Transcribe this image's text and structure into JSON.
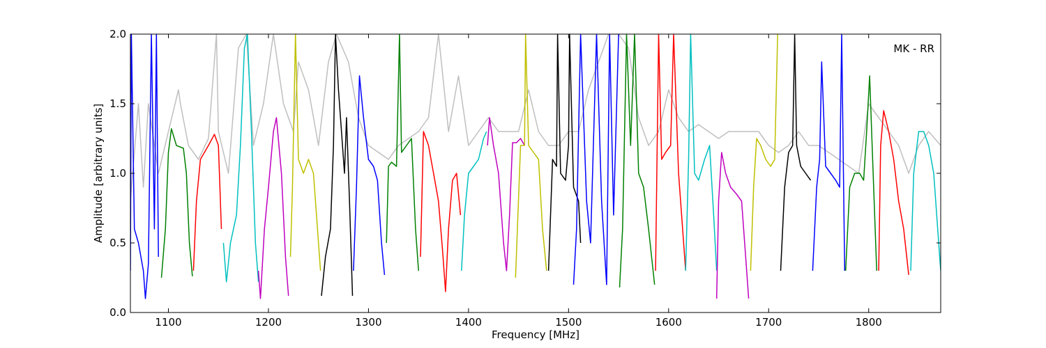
{
  "chart_data": {
    "type": "line",
    "annotation": "MK - RR",
    "xlabel": "Frequency [MHz]",
    "ylabel": "Amplitude [arbitrary units]",
    "xlim": [
      1062,
      1872
    ],
    "ylim": [
      0,
      2
    ],
    "xticks": [
      1100,
      1200,
      1300,
      1400,
      1500,
      1600,
      1700,
      1800
    ],
    "yticks": [
      {
        "value": 0,
        "label": "0.0"
      },
      {
        "value": 0.5,
        "label": "0.5"
      },
      {
        "value": 1,
        "label": "1.0"
      },
      {
        "value": 1.5,
        "label": "1.5"
      },
      {
        "value": 2,
        "label": "2.0"
      }
    ],
    "series": [
      {
        "color": "#bfbfbf",
        "x": [
          1062,
          1070,
          1075,
          1080,
          1090,
          1100,
          1110,
          1112,
          1120,
          1130,
          1140,
          1148,
          1150,
          1160,
          1170,
          1178,
          1185,
          1195,
          1205,
          1215,
          1225,
          1230,
          1240,
          1250,
          1260,
          1268,
          1280,
          1290,
          1300,
          1310,
          1320,
          1330,
          1340,
          1350,
          1360,
          1370,
          1380,
          1390,
          1400,
          1410,
          1420,
          1430,
          1440,
          1450,
          1460,
          1470,
          1480,
          1490,
          1500,
          1510,
          1520,
          1530,
          1540,
          1550,
          1560,
          1570,
          1580,
          1590,
          1600,
          1610,
          1620,
          1630,
          1640,
          1650,
          1660,
          1670,
          1680,
          1690,
          1700,
          1710,
          1720,
          1730,
          1740,
          1750,
          1760,
          1770,
          1780,
          1790,
          1800,
          1810,
          1820,
          1830,
          1840,
          1850,
          1860,
          1872
        ],
        "values": [
          0.8,
          1.5,
          0.9,
          1.5,
          1.0,
          1.3,
          1.6,
          1.5,
          1.2,
          1.1,
          1.25,
          2.0,
          1.3,
          1.0,
          1.9,
          2.0,
          1.2,
          1.5,
          2.0,
          1.5,
          1.3,
          1.8,
          1.6,
          1.2,
          1.8,
          2.0,
          1.8,
          1.4,
          1.2,
          1.15,
          1.1,
          1.2,
          1.25,
          1.3,
          1.4,
          2.0,
          1.3,
          1.7,
          1.2,
          1.3,
          1.4,
          1.3,
          1.3,
          1.3,
          1.6,
          1.3,
          1.2,
          1.2,
          1.3,
          1.3,
          1.6,
          1.8,
          2.0,
          2.0,
          1.9,
          1.4,
          1.2,
          1.3,
          1.6,
          1.4,
          1.3,
          1.35,
          1.3,
          1.25,
          1.3,
          1.3,
          1.3,
          1.3,
          1.2,
          1.15,
          1.2,
          1.3,
          1.2,
          1.2,
          1.15,
          1.1,
          1.05,
          1.0,
          1.5,
          1.4,
          1.3,
          1.2,
          1.0,
          1.2,
          1.3,
          1.2
        ]
      },
      {
        "color": "#0000ff",
        "x": [
          1062,
          1063,
          1066,
          1070,
          1075,
          1077,
          1080,
          1083,
          1086,
          1088,
          1090
        ],
        "values": [
          0.3,
          2.0,
          0.6,
          0.5,
          0.3,
          0.1,
          0.35,
          2.0,
          0.6,
          2.0,
          0.4
        ]
      },
      {
        "color": "#008000",
        "x": [
          1093,
          1097,
          1100,
          1103,
          1108,
          1115,
          1118,
          1121,
          1124
        ],
        "values": [
          0.25,
          0.6,
          1.15,
          1.32,
          1.2,
          1.18,
          1.0,
          0.5,
          0.26
        ]
      },
      {
        "color": "#ff0000",
        "x": [
          1125,
          1128,
          1132,
          1140,
          1146,
          1150,
          1153
        ],
        "values": [
          0.3,
          0.8,
          1.1,
          1.2,
          1.28,
          1.2,
          0.6
        ]
      },
      {
        "color": "#00bfbf",
        "x": [
          1155,
          1158,
          1162,
          1168,
          1172,
          1176,
          1179,
          1183,
          1187,
          1190
        ],
        "values": [
          0.5,
          0.22,
          0.5,
          0.7,
          1.2,
          1.9,
          2.0,
          1.3,
          0.5,
          0.22
        ]
      },
      {
        "color": "#bf00bf",
        "x": [
          1190,
          1192,
          1196,
          1200,
          1205,
          1208,
          1213,
          1217,
          1220
        ],
        "values": [
          0.3,
          0.1,
          0.6,
          0.9,
          1.3,
          1.4,
          1.0,
          0.4,
          0.12
        ]
      },
      {
        "color": "#bfbf00",
        "x": [
          1222,
          1224,
          1227,
          1230,
          1235,
          1240,
          1245,
          1249,
          1252
        ],
        "values": [
          0.4,
          0.9,
          2.0,
          1.1,
          1.0,
          1.1,
          1.0,
          0.6,
          0.3
        ]
      },
      {
        "color": "#000000",
        "x": [
          1253,
          1257,
          1262,
          1265,
          1267,
          1270,
          1273,
          1276,
          1278,
          1281,
          1284
        ],
        "values": [
          0.12,
          0.4,
          0.6,
          1.2,
          2.0,
          1.6,
          1.3,
          1.0,
          1.4,
          0.8,
          0.12
        ]
      },
      {
        "color": "#0000ff",
        "x": [
          1285,
          1288,
          1291,
          1295,
          1300,
          1305,
          1309,
          1313,
          1316
        ],
        "values": [
          0.3,
          0.9,
          1.7,
          1.4,
          1.1,
          1.05,
          0.95,
          0.5,
          0.27
        ]
      },
      {
        "color": "#008000",
        "x": [
          1318,
          1320,
          1323,
          1328,
          1331,
          1333,
          1338,
          1343,
          1347,
          1350
        ],
        "values": [
          0.5,
          1.05,
          1.08,
          1.05,
          2.0,
          1.15,
          1.2,
          1.25,
          0.6,
          0.3
        ]
      },
      {
        "color": "#ff0000",
        "x": [
          1352,
          1355,
          1360,
          1365,
          1370,
          1374,
          1377,
          1380,
          1384,
          1388,
          1392
        ],
        "values": [
          0.4,
          1.3,
          1.2,
          1.0,
          0.8,
          0.45,
          0.15,
          0.6,
          0.95,
          1.0,
          0.7
        ]
      },
      {
        "color": "#00bfbf",
        "x": [
          1393,
          1396,
          1400,
          1405,
          1410,
          1415,
          1418
        ],
        "values": [
          0.3,
          0.7,
          1.0,
          1.05,
          1.1,
          1.25,
          1.3
        ]
      },
      {
        "color": "#bf00bf",
        "x": [
          1419,
          1421,
          1425,
          1430,
          1435,
          1438,
          1441,
          1444,
          1448,
          1452,
          1456
        ],
        "values": [
          1.2,
          1.4,
          1.2,
          1.0,
          0.5,
          0.3,
          0.7,
          1.22,
          1.22,
          1.25,
          1.2
        ]
      },
      {
        "color": "#bfbf00",
        "x": [
          1447,
          1452,
          1456,
          1457,
          1460,
          1465,
          1470,
          1474,
          1478
        ],
        "values": [
          0.25,
          1.2,
          1.2,
          2.0,
          1.2,
          1.15,
          1.1,
          0.6,
          0.3
        ]
      },
      {
        "color": "#000000",
        "x": [
          1480,
          1484,
          1488,
          1489,
          1492,
          1497,
          1500,
          1501,
          1505,
          1510,
          1512
        ],
        "values": [
          0.3,
          1.1,
          1.05,
          2.0,
          1.0,
          0.95,
          1.2,
          2.0,
          0.9,
          0.8,
          0.5
        ]
      },
      {
        "color": "#0000ff",
        "x": [
          1505,
          1508,
          1512,
          1518,
          1522,
          1528,
          1533,
          1538,
          1541,
          1545,
          1550
        ],
        "values": [
          0.2,
          0.6,
          2.0,
          0.8,
          0.5,
          2.0,
          0.8,
          0.2,
          2.0,
          0.7,
          2.0
        ]
      },
      {
        "color": "#008000",
        "x": [
          1551,
          1554,
          1558,
          1562,
          1566,
          1570,
          1575,
          1580,
          1586
        ],
        "values": [
          0.18,
          0.6,
          2.0,
          1.2,
          2.0,
          1.0,
          0.9,
          0.6,
          0.2
        ]
      },
      {
        "color": "#ff0000",
        "x": [
          1587,
          1590,
          1593,
          1597,
          1602,
          1605,
          1610,
          1614,
          1617
        ],
        "values": [
          0.3,
          2.0,
          1.1,
          1.15,
          1.2,
          2.0,
          1.0,
          0.6,
          0.3
        ]
      },
      {
        "color": "#00bfbf",
        "x": [
          1617,
          1620,
          1622,
          1626,
          1630,
          1636,
          1641,
          1645,
          1648
        ],
        "values": [
          0.3,
          1.1,
          2.0,
          1.0,
          0.95,
          1.1,
          1.2,
          0.7,
          0.3
        ]
      },
      {
        "color": "#bf00bf",
        "x": [
          1648,
          1650,
          1653,
          1657,
          1662,
          1668,
          1673,
          1677,
          1680
        ],
        "values": [
          0.1,
          0.8,
          1.15,
          1.0,
          0.9,
          0.85,
          0.8,
          0.4,
          0.1
        ]
      },
      {
        "color": "#bfbf00",
        "x": [
          1682,
          1685,
          1688,
          1692,
          1697,
          1702,
          1706,
          1709
        ],
        "values": [
          0.3,
          0.9,
          1.25,
          1.2,
          1.1,
          1.05,
          1.1,
          2.0
        ]
      },
      {
        "color": "#000000",
        "x": [
          1712,
          1716,
          1720,
          1724,
          1726,
          1728,
          1732,
          1737,
          1742
        ],
        "values": [
          0.3,
          0.9,
          1.15,
          1.2,
          2.0,
          1.2,
          1.05,
          1.0,
          0.95
        ]
      },
      {
        "color": "#0000ff",
        "x": [
          1744,
          1748,
          1751,
          1753,
          1757,
          1762,
          1767,
          1771,
          1773,
          1776
        ],
        "values": [
          0.3,
          0.9,
          1.1,
          1.8,
          1.05,
          1.0,
          0.95,
          0.9,
          2.0,
          0.3
        ]
      },
      {
        "color": "#008000",
        "x": [
          1777,
          1781,
          1786,
          1791,
          1795,
          1798,
          1801,
          1804,
          1808
        ],
        "values": [
          0.3,
          0.9,
          1.0,
          1.0,
          0.95,
          1.3,
          1.7,
          1.1,
          0.3
        ]
      },
      {
        "color": "#ff0000",
        "x": [
          1810,
          1812,
          1815,
          1820,
          1825,
          1830,
          1835,
          1840
        ],
        "values": [
          0.3,
          1.2,
          1.45,
          1.3,
          1.1,
          0.8,
          0.6,
          0.27
        ]
      },
      {
        "color": "#00bfbf",
        "x": [
          1842,
          1845,
          1850,
          1855,
          1860,
          1865,
          1869,
          1872
        ],
        "values": [
          0.3,
          1.0,
          1.3,
          1.3,
          1.2,
          1.0,
          0.6,
          0.3
        ]
      }
    ]
  }
}
